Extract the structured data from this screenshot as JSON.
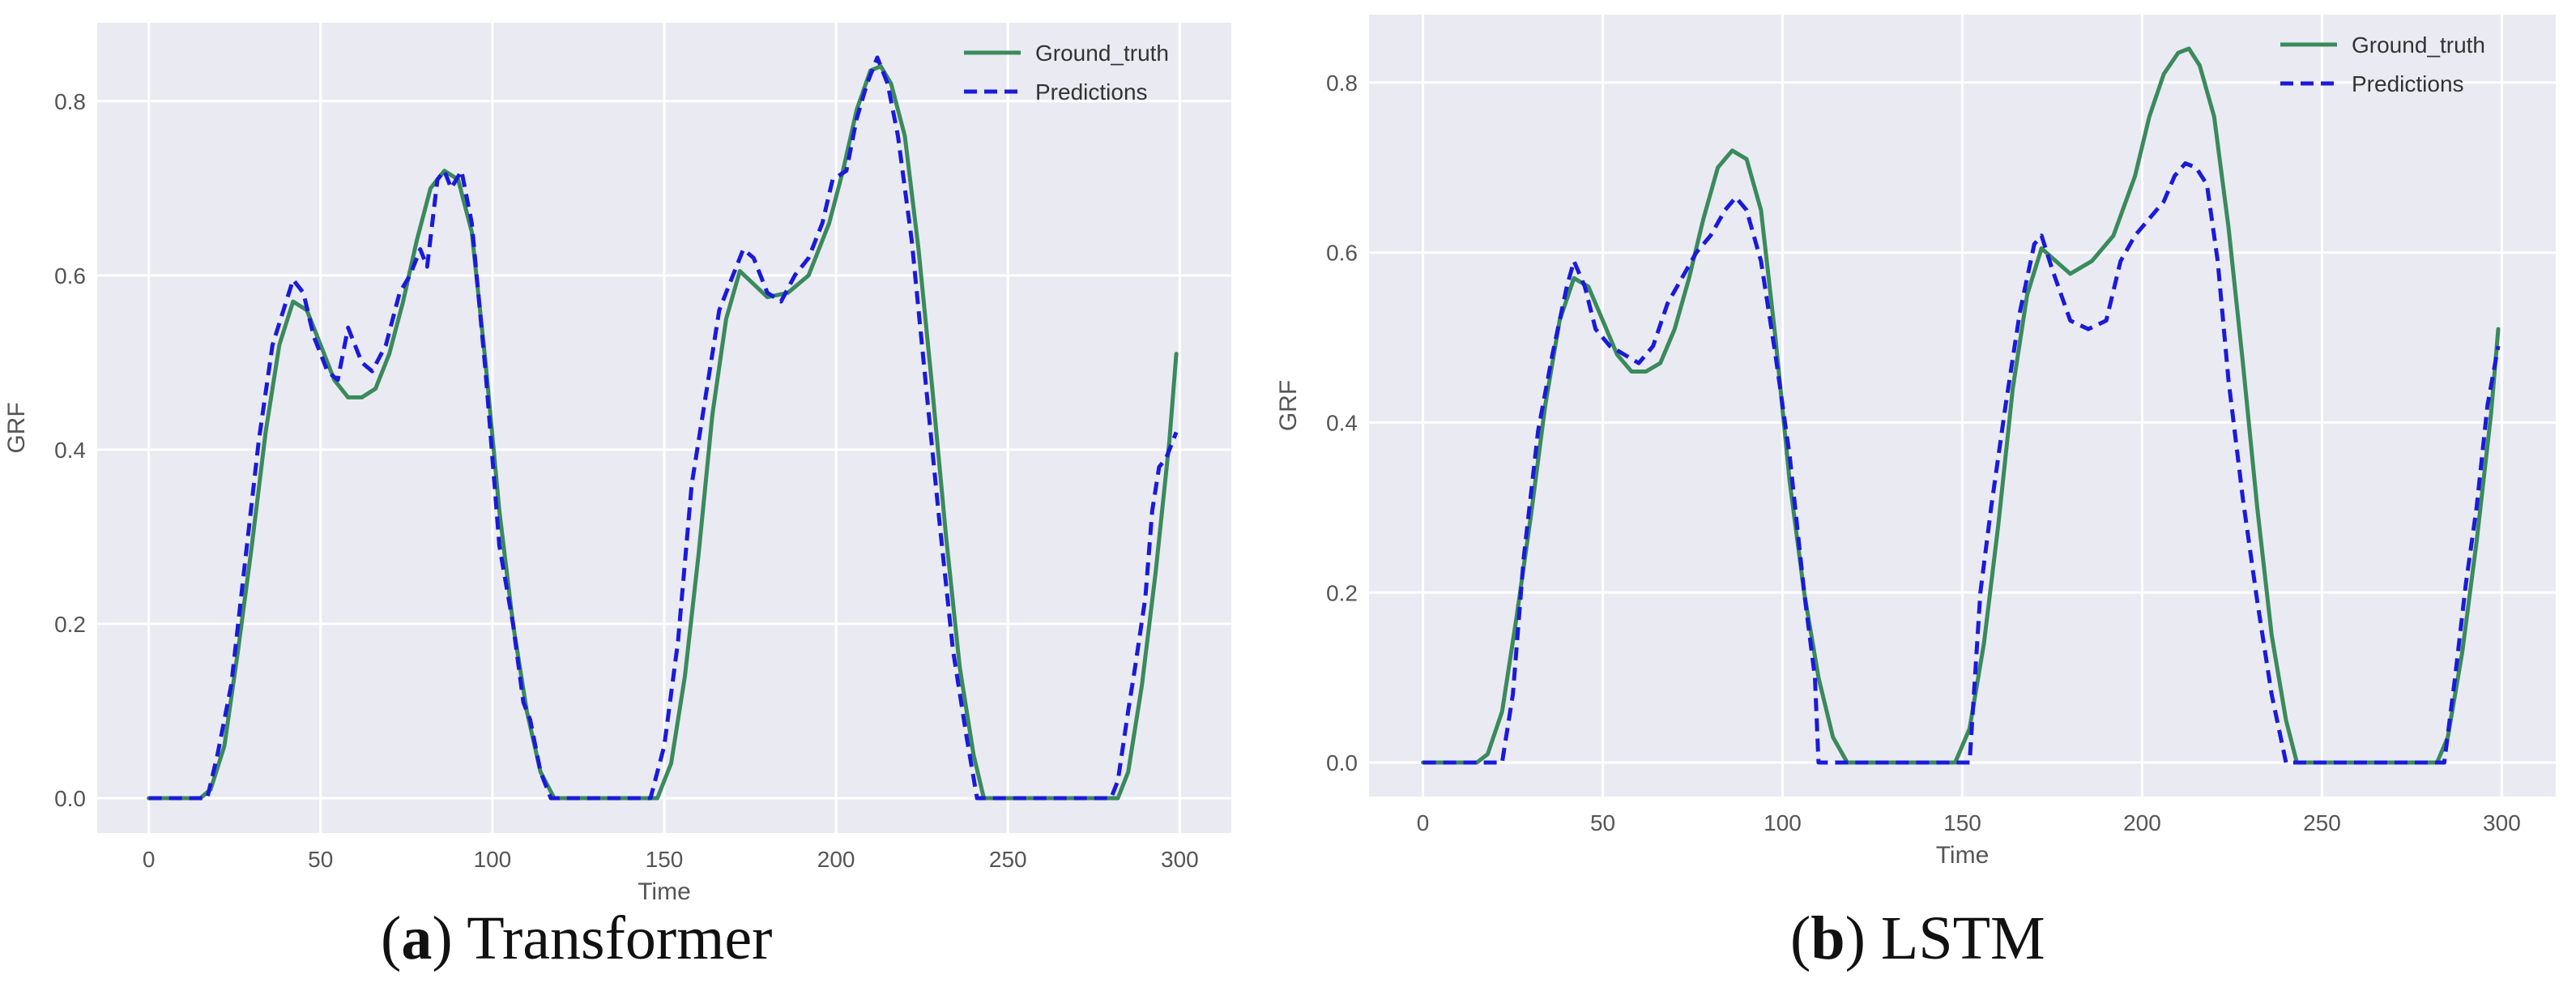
{
  "colors": {
    "ground_truth": "#3a8a5c",
    "predictions": "#1a1adb",
    "plot_bg": "#eaeaf2",
    "grid": "#ffffff"
  },
  "captions": [
    {
      "letter": "a",
      "text": "Transformer"
    },
    {
      "letter": "b",
      "text": "LSTM"
    }
  ],
  "chart_data": [
    {
      "type": "line",
      "title": "",
      "xlabel": "Time",
      "ylabel": "GRF",
      "xlim": [
        -15,
        315
      ],
      "ylim": [
        -0.04,
        0.89
      ],
      "xticks": [
        0,
        50,
        100,
        150,
        200,
        250,
        300
      ],
      "yticks": [
        0.0,
        0.2,
        0.4,
        0.6,
        0.8
      ],
      "ytick_labels": [
        "0.0",
        "0.2",
        "0.4",
        "0.6",
        "0.8"
      ],
      "grid": true,
      "legend": "top-right",
      "series": [
        {
          "name": "Ground_truth",
          "style": "solid",
          "points": [
            [
              0,
              0
            ],
            [
              10,
              0
            ],
            [
              15,
              0
            ],
            [
              18,
              0.01
            ],
            [
              22,
              0.06
            ],
            [
              26,
              0.17
            ],
            [
              30,
              0.29
            ],
            [
              34,
              0.42
            ],
            [
              38,
              0.52
            ],
            [
              42,
              0.57
            ],
            [
              46,
              0.56
            ],
            [
              50,
              0.52
            ],
            [
              54,
              0.48
            ],
            [
              58,
              0.46
            ],
            [
              62,
              0.46
            ],
            [
              66,
              0.47
            ],
            [
              70,
              0.51
            ],
            [
              74,
              0.57
            ],
            [
              78,
              0.64
            ],
            [
              82,
              0.7
            ],
            [
              86,
              0.72
            ],
            [
              90,
              0.71
            ],
            [
              94,
              0.65
            ],
            [
              98,
              0.5
            ],
            [
              102,
              0.33
            ],
            [
              106,
              0.2
            ],
            [
              110,
              0.1
            ],
            [
              114,
              0.03
            ],
            [
              118,
              0.0
            ],
            [
              125,
              0
            ],
            [
              140,
              0
            ],
            [
              148,
              0
            ],
            [
              152,
              0.04
            ],
            [
              156,
              0.14
            ],
            [
              160,
              0.28
            ],
            [
              164,
              0.44
            ],
            [
              168,
              0.55
            ],
            [
              172,
              0.605
            ],
            [
              176,
              0.59
            ],
            [
              180,
              0.575
            ],
            [
              186,
              0.58
            ],
            [
              192,
              0.6
            ],
            [
              198,
              0.66
            ],
            [
              202,
              0.72
            ],
            [
              206,
              0.79
            ],
            [
              210,
              0.835
            ],
            [
              213,
              0.84
            ],
            [
              216,
              0.82
            ],
            [
              220,
              0.76
            ],
            [
              224,
              0.63
            ],
            [
              228,
              0.47
            ],
            [
              232,
              0.3
            ],
            [
              236,
              0.15
            ],
            [
              240,
              0.05
            ],
            [
              243,
              0.0
            ],
            [
              250,
              0
            ],
            [
              270,
              0
            ],
            [
              282,
              0
            ],
            [
              285,
              0.03
            ],
            [
              289,
              0.13
            ],
            [
              293,
              0.26
            ],
            [
              297,
              0.41
            ],
            [
              299,
              0.51
            ]
          ]
        },
        {
          "name": "Predictions",
          "style": "dashed",
          "points": [
            [
              0,
              0
            ],
            [
              10,
              0
            ],
            [
              17,
              0
            ],
            [
              20,
              0.05
            ],
            [
              24,
              0.13
            ],
            [
              28,
              0.27
            ],
            [
              32,
              0.41
            ],
            [
              36,
              0.52
            ],
            [
              40,
              0.57
            ],
            [
              42,
              0.595
            ],
            [
              45,
              0.58
            ],
            [
              48,
              0.53
            ],
            [
              52,
              0.49
            ],
            [
              55,
              0.48
            ],
            [
              58,
              0.54
            ],
            [
              62,
              0.5
            ],
            [
              65,
              0.49
            ],
            [
              69,
              0.52
            ],
            [
              73,
              0.58
            ],
            [
              76,
              0.6
            ],
            [
              79,
              0.63
            ],
            [
              81,
              0.61
            ],
            [
              84,
              0.71
            ],
            [
              86,
              0.72
            ],
            [
              88,
              0.7
            ],
            [
              91,
              0.72
            ],
            [
              94,
              0.66
            ],
            [
              98,
              0.49
            ],
            [
              102,
              0.29
            ],
            [
              106,
              0.2
            ],
            [
              109,
              0.11
            ],
            [
              111,
              0.09
            ],
            [
              114,
              0.03
            ],
            [
              117,
              0.0
            ],
            [
              125,
              0
            ],
            [
              140,
              0
            ],
            [
              146,
              0
            ],
            [
              150,
              0.06
            ],
            [
              154,
              0.18
            ],
            [
              158,
              0.36
            ],
            [
              162,
              0.46
            ],
            [
              166,
              0.56
            ],
            [
              170,
              0.6
            ],
            [
              173,
              0.63
            ],
            [
              176,
              0.62
            ],
            [
              180,
              0.58
            ],
            [
              184,
              0.57
            ],
            [
              188,
              0.6
            ],
            [
              192,
              0.62
            ],
            [
              196,
              0.66
            ],
            [
              199,
              0.71
            ],
            [
              203,
              0.72
            ],
            [
              206,
              0.78
            ],
            [
              209,
              0.82
            ],
            [
              212,
              0.85
            ],
            [
              215,
              0.82
            ],
            [
              218,
              0.76
            ],
            [
              222,
              0.64
            ],
            [
              226,
              0.48
            ],
            [
              230,
              0.32
            ],
            [
              234,
              0.17
            ],
            [
              238,
              0.07
            ],
            [
              241,
              0.0
            ],
            [
              250,
              0
            ],
            [
              270,
              0
            ],
            [
              280,
              0
            ],
            [
              282,
              0.02
            ],
            [
              285,
              0.1
            ],
            [
              287,
              0.15
            ],
            [
              290,
              0.23
            ],
            [
              292,
              0.33
            ],
            [
              294,
              0.38
            ],
            [
              296,
              0.39
            ],
            [
              299,
              0.42
            ]
          ]
        }
      ]
    },
    {
      "type": "line",
      "title": "",
      "xlabel": "Time",
      "ylabel": "GRF",
      "xlim": [
        -15,
        315
      ],
      "ylim": [
        -0.04,
        0.88
      ],
      "xticks": [
        0,
        50,
        100,
        150,
        200,
        250,
        300
      ],
      "yticks": [
        0.0,
        0.2,
        0.4,
        0.6,
        0.8
      ],
      "ytick_labels": [
        "0.0",
        "0.2",
        "0.4",
        "0.6",
        "0.8"
      ],
      "grid": true,
      "legend": "top-right",
      "series": [
        {
          "name": "Ground_truth",
          "style": "solid",
          "points": [
            [
              0,
              0
            ],
            [
              10,
              0
            ],
            [
              15,
              0
            ],
            [
              18,
              0.01
            ],
            [
              22,
              0.06
            ],
            [
              26,
              0.17
            ],
            [
              30,
              0.29
            ],
            [
              34,
              0.42
            ],
            [
              38,
              0.52
            ],
            [
              42,
              0.57
            ],
            [
              46,
              0.56
            ],
            [
              50,
              0.52
            ],
            [
              54,
              0.48
            ],
            [
              58,
              0.46
            ],
            [
              62,
              0.46
            ],
            [
              66,
              0.47
            ],
            [
              70,
              0.51
            ],
            [
              74,
              0.57
            ],
            [
              78,
              0.64
            ],
            [
              82,
              0.7
            ],
            [
              86,
              0.72
            ],
            [
              90,
              0.71
            ],
            [
              94,
              0.65
            ],
            [
              98,
              0.5
            ],
            [
              102,
              0.33
            ],
            [
              106,
              0.2
            ],
            [
              110,
              0.1
            ],
            [
              114,
              0.03
            ],
            [
              118,
              0.0
            ],
            [
              125,
              0
            ],
            [
              140,
              0
            ],
            [
              148,
              0
            ],
            [
              152,
              0.04
            ],
            [
              156,
              0.14
            ],
            [
              160,
              0.28
            ],
            [
              164,
              0.44
            ],
            [
              168,
              0.55
            ],
            [
              172,
              0.605
            ],
            [
              176,
              0.59
            ],
            [
              180,
              0.575
            ],
            [
              186,
              0.59
            ],
            [
              192,
              0.62
            ],
            [
              198,
              0.69
            ],
            [
              202,
              0.76
            ],
            [
              206,
              0.81
            ],
            [
              210,
              0.835
            ],
            [
              213,
              0.84
            ],
            [
              216,
              0.82
            ],
            [
              220,
              0.76
            ],
            [
              224,
              0.63
            ],
            [
              228,
              0.47
            ],
            [
              232,
              0.3
            ],
            [
              236,
              0.15
            ],
            [
              240,
              0.05
            ],
            [
              243,
              0.0
            ],
            [
              250,
              0
            ],
            [
              270,
              0
            ],
            [
              282,
              0
            ],
            [
              285,
              0.03
            ],
            [
              289,
              0.13
            ],
            [
              293,
              0.26
            ],
            [
              297,
              0.41
            ],
            [
              299,
              0.51
            ]
          ]
        },
        {
          "name": "Predictions",
          "style": "dashed",
          "points": [
            [
              0,
              0
            ],
            [
              10,
              0
            ],
            [
              22,
              0
            ],
            [
              25,
              0.08
            ],
            [
              28,
              0.24
            ],
            [
              32,
              0.39
            ],
            [
              36,
              0.48
            ],
            [
              40,
              0.56
            ],
            [
              42,
              0.59
            ],
            [
              45,
              0.56
            ],
            [
              48,
              0.51
            ],
            [
              52,
              0.49
            ],
            [
              56,
              0.48
            ],
            [
              60,
              0.47
            ],
            [
              64,
              0.49
            ],
            [
              68,
              0.54
            ],
            [
              72,
              0.57
            ],
            [
              76,
              0.6
            ],
            [
              80,
              0.62
            ],
            [
              84,
              0.65
            ],
            [
              87,
              0.665
            ],
            [
              90,
              0.65
            ],
            [
              94,
              0.59
            ],
            [
              98,
              0.48
            ],
            [
              102,
              0.36
            ],
            [
              106,
              0.2
            ],
            [
              109,
              0.1
            ],
            [
              110,
              0.0
            ],
            [
              125,
              0
            ],
            [
              140,
              0
            ],
            [
              150,
              0
            ],
            [
              152,
              0.0
            ],
            [
              155,
              0.2
            ],
            [
              158,
              0.3
            ],
            [
              162,
              0.42
            ],
            [
              166,
              0.53
            ],
            [
              170,
              0.61
            ],
            [
              172,
              0.62
            ],
            [
              175,
              0.58
            ],
            [
              180,
              0.52
            ],
            [
              185,
              0.51
            ],
            [
              190,
              0.52
            ],
            [
              194,
              0.59
            ],
            [
              198,
              0.62
            ],
            [
              202,
              0.64
            ],
            [
              206,
              0.66
            ],
            [
              209,
              0.69
            ],
            [
              212,
              0.705
            ],
            [
              215,
              0.7
            ],
            [
              218,
              0.68
            ],
            [
              221,
              0.59
            ],
            [
              224,
              0.45
            ],
            [
              228,
              0.31
            ],
            [
              232,
              0.19
            ],
            [
              236,
              0.08
            ],
            [
              240,
              0.0
            ],
            [
              250,
              0
            ],
            [
              270,
              0
            ],
            [
              284,
              0
            ],
            [
              287,
              0.1
            ],
            [
              290,
              0.21
            ],
            [
              293,
              0.3
            ],
            [
              296,
              0.42
            ],
            [
              299,
              0.49
            ]
          ]
        }
      ]
    }
  ]
}
